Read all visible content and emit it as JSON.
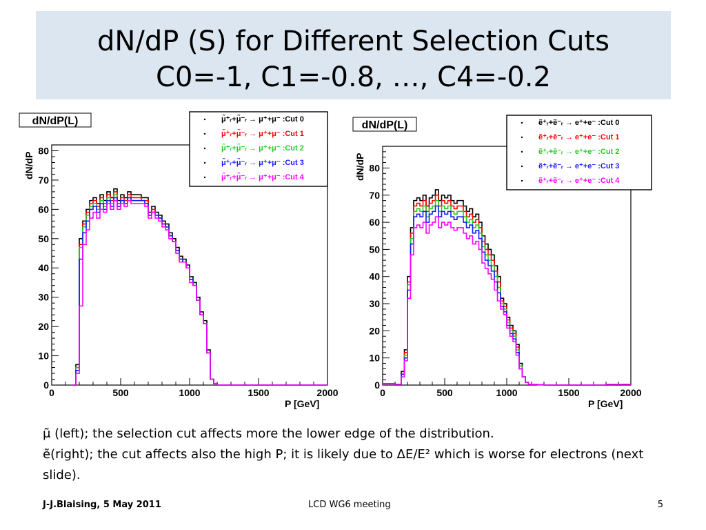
{
  "slide": {
    "title_line1": "dN/dP (S) for Different Selection Cuts",
    "title_line2": "C0=-1, C1=-0.8, …, C4=-0.2",
    "notes": [
      " μ̃ (left); the selection cut affects more the lower edge of the distribution.",
      " ẽ(right); the cut affects also the high P; it is likely due to ΔE/E² which is worse for electrons (next slide)."
    ],
    "footer_left": "J-J.Blaising, 5 May 2011",
    "footer_center": "LCD WG6 meeting",
    "footer_right": "5"
  },
  "chart_data": [
    {
      "type": "line",
      "title": "dN/dP(L)",
      "xlabel": "P [GeV]",
      "ylabel": "dN/dP",
      "xlim": [
        0,
        2000
      ],
      "ylim": [
        0,
        82
      ],
      "xticks": [
        0,
        500,
        1000,
        1500,
        2000
      ],
      "yticks": [
        0,
        10,
        20,
        30,
        40,
        50,
        60,
        70,
        80
      ],
      "legend_position": "top-right",
      "x": [
        150,
        175,
        200,
        225,
        250,
        275,
        300,
        325,
        350,
        375,
        400,
        425,
        450,
        475,
        500,
        525,
        550,
        575,
        600,
        625,
        650,
        675,
        700,
        725,
        750,
        775,
        800,
        825,
        850,
        875,
        900,
        925,
        950,
        975,
        1000,
        1025,
        1050,
        1075,
        1100,
        1125,
        1150,
        1175,
        1200,
        1250,
        2000
      ],
      "series": [
        {
          "name": "μ̃⁺ᵣ+μ̃⁻ᵣ → μ⁺+μ⁻ :Cut 0",
          "color": "#000000",
          "values": [
            0,
            7,
            50,
            56,
            60,
            63,
            64,
            62,
            65,
            63,
            66,
            64,
            67,
            63,
            65,
            64,
            66,
            65,
            65,
            65,
            64,
            64,
            59,
            61,
            59,
            58,
            56,
            55,
            52,
            50,
            47,
            44,
            43,
            41,
            37,
            35,
            30,
            25,
            22,
            12,
            2,
            0.5,
            0,
            0,
            0
          ]
        },
        {
          "name": "μ̃⁺ᵣ+μ̃⁻ᵣ → μ⁺+μ⁻ :Cut 1",
          "color": "#ff0000",
          "values": [
            0,
            6,
            48,
            55,
            59,
            62,
            63,
            61,
            64,
            62,
            65,
            63,
            66,
            62,
            64,
            63,
            65,
            64,
            64,
            64,
            63,
            63,
            58,
            60,
            58,
            57,
            55,
            54,
            51,
            49,
            46,
            43,
            42,
            40,
            36,
            34,
            29,
            24,
            21,
            11,
            2,
            0.5,
            0,
            0,
            0
          ]
        },
        {
          "name": "μ̃⁺ᵣ+μ̃⁻ᵣ → μ⁺+μ⁻ :Cut 2",
          "color": "#22cc22",
          "values": [
            0,
            6,
            47,
            54,
            58,
            61,
            62,
            60,
            63,
            61,
            64,
            62,
            65,
            61,
            63,
            62,
            64,
            63,
            63,
            63,
            63,
            62,
            58,
            59,
            58,
            57,
            55,
            54,
            51,
            49,
            46,
            43,
            42,
            40,
            36,
            34,
            29,
            24,
            21,
            11,
            2,
            0.5,
            0,
            0,
            0
          ]
        },
        {
          "name": "μ̃⁺ᵣ+μ̃⁻ᵣ → μ⁺+μ⁻ :Cut 3",
          "color": "#1a1aff",
          "values": [
            0,
            5,
            43,
            52,
            56,
            60,
            61,
            59,
            62,
            60,
            63,
            61,
            64,
            61,
            63,
            62,
            64,
            63,
            63,
            63,
            63,
            62,
            58,
            59,
            58,
            57,
            55,
            54,
            51,
            49,
            46,
            43,
            42,
            40,
            36,
            34,
            29,
            24,
            21,
            11,
            2,
            0.5,
            0,
            0,
            0
          ]
        },
        {
          "name": "μ̃⁺ᵣ+μ̃⁻ᵣ → μ⁺+μ⁻ :Cut 4",
          "color": "#ff00ff",
          "values": [
            0,
            4,
            27,
            48,
            53,
            57,
            59,
            57,
            60,
            59,
            62,
            60,
            63,
            60,
            62,
            61,
            63,
            62,
            62,
            62,
            62,
            61,
            57,
            59,
            57,
            56,
            54,
            53,
            50,
            49,
            45,
            42,
            42,
            40,
            35,
            34,
            29,
            24,
            21,
            11,
            2,
            0.5,
            0,
            0,
            0
          ]
        }
      ]
    },
    {
      "type": "line",
      "title": "dN/dP(L)",
      "xlabel": "P [GeV]",
      "ylabel": "dN/dP",
      "xlim": [
        0,
        2000
      ],
      "ylim": [
        0,
        88
      ],
      "xticks": [
        0,
        500,
        1000,
        1500,
        2000
      ],
      "yticks": [
        0,
        10,
        20,
        30,
        40,
        50,
        60,
        70,
        80
      ],
      "legend_position": "top-right",
      "x": [
        0,
        100,
        150,
        175,
        200,
        225,
        250,
        275,
        300,
        325,
        350,
        375,
        400,
        425,
        450,
        475,
        500,
        525,
        550,
        575,
        600,
        625,
        650,
        675,
        700,
        725,
        750,
        775,
        800,
        825,
        850,
        875,
        900,
        925,
        950,
        975,
        1000,
        1025,
        1050,
        1075,
        1100,
        1125,
        1150,
        1175,
        1200,
        1250,
        1300,
        1800,
        2000
      ],
      "series": [
        {
          "name": "ẽ⁺ᵣ+ẽ⁻ᵣ → e⁺+e⁻ :Cut 0",
          "color": "#000000",
          "values": [
            0.5,
            0.3,
            5,
            13,
            40,
            58,
            68,
            69,
            68,
            70,
            66,
            69,
            70,
            72,
            68,
            70,
            69,
            70,
            68,
            67,
            68,
            68,
            66,
            64,
            65,
            62,
            63,
            60,
            55,
            52,
            50,
            48,
            44,
            40,
            32,
            30,
            25,
            22,
            20,
            15,
            8,
            3,
            1,
            0.3,
            0.2,
            0.1,
            0,
            0.3,
            0
          ]
        },
        {
          "name": "ẽ⁺ᵣ+ẽ⁻ᵣ → e⁺+e⁻ :Cut 1",
          "color": "#ff0000",
          "values": [
            0.5,
            0.3,
            4,
            12,
            38,
            56,
            66,
            67,
            66,
            68,
            64,
            67,
            68,
            70,
            66,
            68,
            67,
            68,
            66,
            65,
            66,
            66,
            64,
            62,
            63,
            60,
            61,
            58,
            53,
            50,
            48,
            46,
            42,
            38,
            31,
            29,
            24,
            21,
            19,
            14,
            7,
            3,
            1,
            0.3,
            0.2,
            0.1,
            0,
            0.3,
            0
          ]
        },
        {
          "name": "ẽ⁺ᵣ+ẽ⁻ᵣ → e⁺+e⁻ :Cut 2",
          "color": "#22cc22",
          "values": [
            0.5,
            0.3,
            4,
            11,
            37,
            54,
            64,
            65,
            64,
            66,
            62,
            65,
            66,
            68,
            64,
            66,
            65,
            66,
            64,
            63,
            64,
            64,
            62,
            60,
            61,
            58,
            59,
            56,
            51,
            48,
            46,
            44,
            40,
            36,
            30,
            28,
            23,
            20,
            18,
            13,
            7,
            3,
            1,
            0.3,
            0.2,
            0.1,
            0,
            0.3,
            0
          ]
        },
        {
          "name": "ẽ⁺ᵣ+ẽ⁻ᵣ → e⁺+e⁻ :Cut 3",
          "color": "#1a1aff",
          "values": [
            0.5,
            0.3,
            4,
            10,
            35,
            52,
            62,
            63,
            62,
            64,
            60,
            63,
            64,
            66,
            62,
            64,
            63,
            64,
            62,
            61,
            62,
            62,
            60,
            58,
            59,
            56,
            57,
            54,
            49,
            46,
            44,
            42,
            38,
            34,
            29,
            27,
            22,
            19,
            17,
            12,
            6,
            3,
            1,
            0.3,
            0.2,
            0.1,
            0,
            0.3,
            0
          ]
        },
        {
          "name": "ẽ⁺ᵣ+ẽ⁻ᵣ → e⁺+e⁻ :Cut 4",
          "color": "#ff00ff",
          "values": [
            0.5,
            0.3,
            3,
            9,
            32,
            48,
            58,
            59,
            58,
            60,
            56,
            59,
            60,
            62,
            58,
            60,
            59,
            60,
            58,
            57,
            58,
            58,
            56,
            54,
            55,
            52,
            53,
            50,
            45,
            43,
            41,
            39,
            35,
            31,
            28,
            26,
            21,
            18,
            16,
            11,
            6,
            3,
            1,
            0.3,
            0.2,
            0.1,
            0,
            0.3,
            0
          ]
        }
      ]
    }
  ]
}
